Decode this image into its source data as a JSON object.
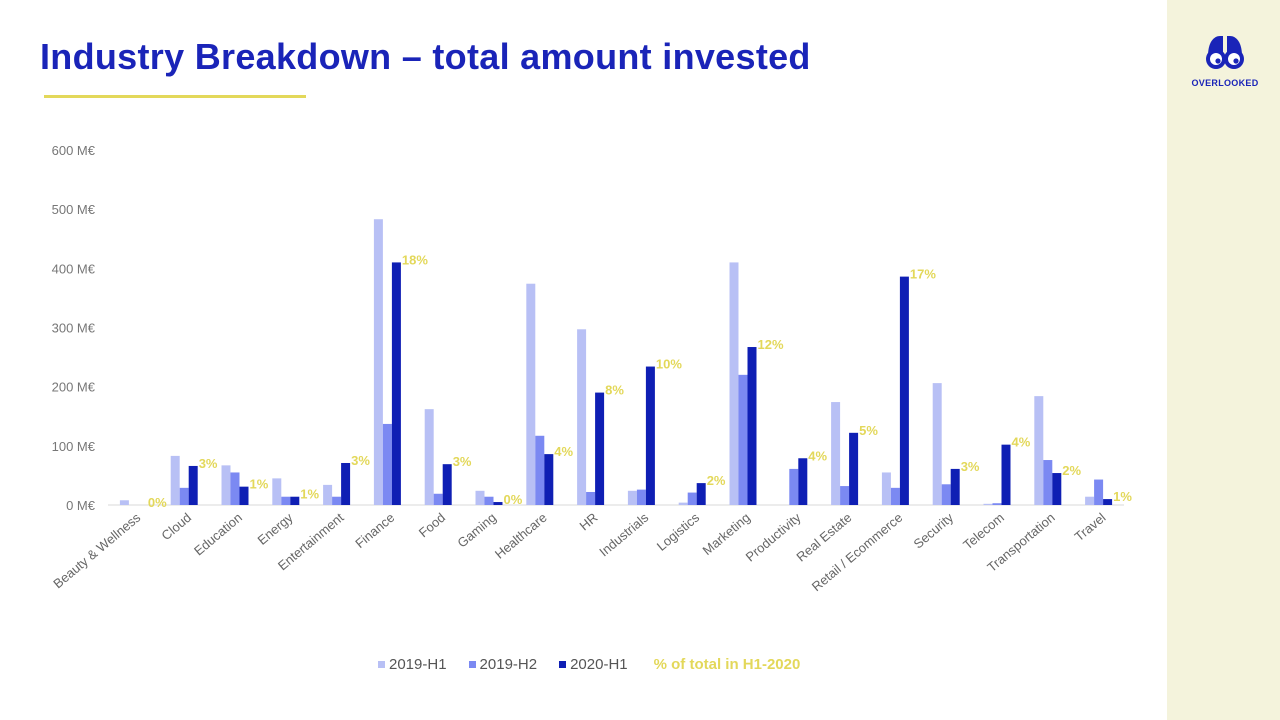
{
  "slide": {
    "title": "Industry Breakdown – total amount invested"
  },
  "logo": {
    "text": "OVERLOOKED",
    "icon": "binoculars-icon"
  },
  "colors": {
    "title": "#1a24b8",
    "accent": "#e3d85a",
    "side_panel": "#f4f3dc",
    "series": [
      "#b8c0f5",
      "#7b89f2",
      "#0f1fb4"
    ]
  },
  "legend": {
    "items": [
      "2019-H1",
      "2019-H2",
      "2020-H1"
    ],
    "note": "% of total in H1-2020"
  },
  "chart_data": {
    "type": "bar",
    "categories": [
      "Beauty & Wellness",
      "Cloud",
      "Education",
      "Energy",
      "Entertainment",
      "Finance",
      "Food",
      "Gaming",
      "Healthcare",
      "HR",
      "Industrials",
      "Logistics",
      "Marketing",
      "Productivity",
      "Real Estate",
      "Retail / Ecommerce",
      "Security",
      "Telecom",
      "Transportation",
      "Travel"
    ],
    "series": [
      {
        "name": "2019-H1",
        "values": [
          8,
          83,
          67,
          45,
          34,
          483,
          162,
          24,
          374,
          297,
          24,
          4,
          410,
          0,
          174,
          55,
          206,
          2,
          184,
          14
        ]
      },
      {
        "name": "2019-H2",
        "values": [
          0,
          29,
          55,
          14,
          14,
          137,
          19,
          14,
          117,
          22,
          26,
          21,
          220,
          61,
          32,
          29,
          35,
          3,
          76,
          43
        ]
      },
      {
        "name": "2020-H1",
        "values": [
          0,
          66,
          31,
          14,
          71,
          410,
          69,
          5,
          86,
          190,
          234,
          37,
          267,
          79,
          122,
          386,
          61,
          102,
          54,
          10
        ]
      }
    ],
    "pct_labels": [
      "0%",
      "3%",
      "1%",
      "1%",
      "3%",
      "18%",
      "3%",
      "0%",
      "4%",
      "8%",
      "10%",
      "2%",
      "12%",
      "4%",
      "5%",
      "17%",
      "3%",
      "4%",
      "2%",
      "1%"
    ],
    "yticks": [
      "0 M€",
      "100 M€",
      "200 M€",
      "300 M€",
      "400 M€",
      "500 M€",
      "600 M€"
    ],
    "ylim": [
      0,
      600
    ],
    "grid": false,
    "legend_position": "bottom",
    "xlabel": "",
    "ylabel": ""
  }
}
